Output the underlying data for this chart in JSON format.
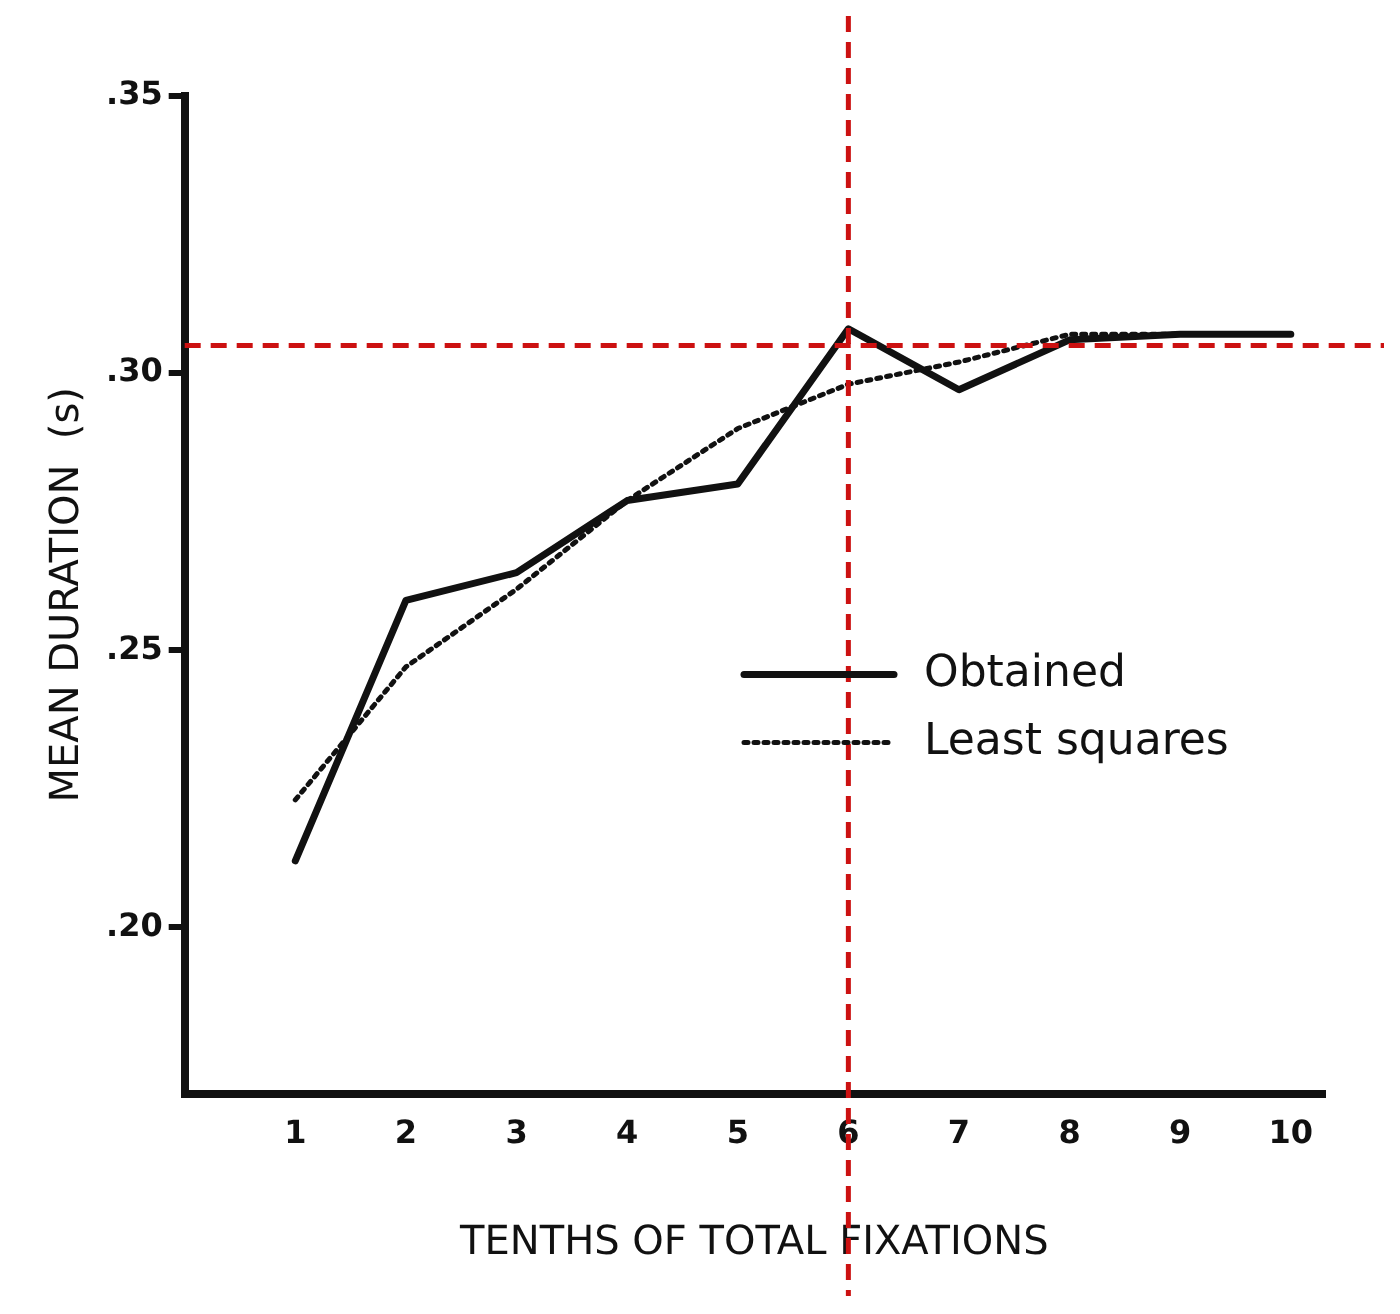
{
  "chart_data": {
    "type": "line",
    "xlabel": "TENTHS OF TOTAL FIXATIONS",
    "ylabel": "MEAN DURATION  (s)",
    "x": [
      1,
      2,
      3,
      4,
      5,
      6,
      7,
      8,
      9,
      10
    ],
    "series": [
      {
        "name": "Obtained",
        "color": "#111111",
        "line_style": "solid",
        "values": [
          0.212,
          0.259,
          0.264,
          0.277,
          0.28,
          0.308,
          0.297,
          0.306,
          0.307,
          0.307
        ]
      },
      {
        "name": "Least squares",
        "color": "#111111",
        "line_style": "dotted",
        "values": [
          0.223,
          0.247,
          0.261,
          0.277,
          0.29,
          0.298,
          0.302,
          0.307,
          0.307,
          0.307
        ]
      }
    ],
    "xlim": [
      0,
      10.3
    ],
    "xticks": [
      1,
      2,
      3,
      4,
      5,
      6,
      7,
      8,
      9,
      10
    ],
    "ylim": [
      0.17,
      0.35
    ],
    "yticks": [
      {
        "value": 0.2,
        "label": ".20"
      },
      {
        "value": 0.25,
        "label": ".25"
      },
      {
        "value": 0.3,
        "label": ".30"
      },
      {
        "value": 0.35,
        "label": ".35"
      }
    ],
    "ref_lines": [
      {
        "axis": "x",
        "value": 6,
        "color": "#cc1111",
        "line_style": "dashed"
      },
      {
        "axis": "y",
        "value": 0.305,
        "color": "#cc1111",
        "line_style": "dashed"
      }
    ],
    "grid": false,
    "legend": "right",
    "marker": "none"
  }
}
